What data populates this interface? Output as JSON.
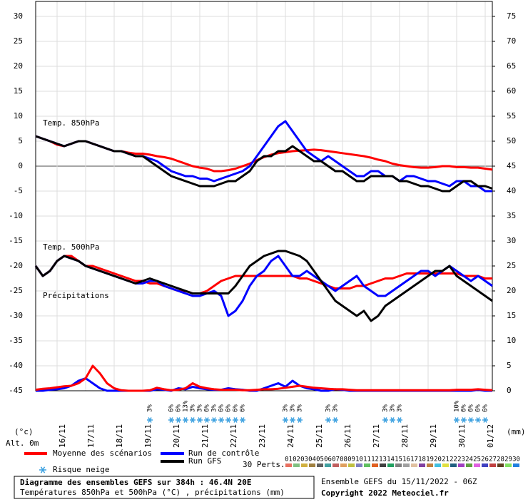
{
  "chart_data": {
    "type": "line",
    "panel_labels": [
      "Temp. 850hPa",
      "Temp. 500hPa",
      "Précipitations"
    ],
    "y_unit": "(°c)",
    "y2_unit": "(mm)",
    "altitude": "Alt. 0m",
    "categories": [
      null,
      null,
      null,
      "16/11",
      null,
      null,
      null,
      "17/11",
      null,
      null,
      null,
      "18/11",
      null,
      null,
      null,
      "19/11",
      null,
      null,
      null,
      "20/11",
      null,
      null,
      null,
      "21/11",
      null,
      null,
      null,
      "22/11",
      null,
      null,
      null,
      "23/11",
      null,
      null,
      null,
      "24/11",
      null,
      null,
      null,
      "25/11",
      null,
      null,
      null,
      "26/11",
      null,
      null,
      null,
      "27/11",
      null,
      null,
      null,
      "28/11",
      null,
      null,
      null,
      "29/11",
      null,
      null,
      null,
      "30/11",
      null,
      null,
      null,
      "01/12",
      null
    ],
    "ylim": [
      -45,
      33
    ],
    "yticks": [
      -45,
      -40,
      -35,
      -30,
      -25,
      -20,
      -15,
      -10,
      -5,
      0,
      5,
      10,
      15,
      20,
      25,
      30
    ],
    "y2lim": [
      0,
      78
    ],
    "y2ticks": [
      0,
      5,
      10,
      15,
      20,
      25,
      30,
      35,
      40,
      45,
      50,
      55,
      60,
      65,
      70,
      75
    ],
    "grid": true,
    "series": [
      {
        "name": "Moyenne des scénarios",
        "color": "#ff0000",
        "values": [
          6,
          5.5,
          5,
          4.3,
          4,
          4.5,
          5,
          5,
          4.5,
          4,
          3.5,
          3,
          3,
          2.7,
          2.5,
          2.5,
          2.3,
          2,
          1.8,
          1.5,
          1,
          0.5,
          0,
          -0.3,
          -0.5,
          -1,
          -1,
          -0.8,
          -0.5,
          0,
          0.5,
          1.2,
          1.8,
          2.3,
          2.6,
          2.8,
          3,
          3.1,
          3.2,
          3.3,
          3.2,
          3,
          2.8,
          2.6,
          2.4,
          2.2,
          2,
          1.7,
          1.3,
          1,
          0.5,
          0.2,
          0,
          -0.2,
          -0.3,
          -0.3,
          -0.2,
          0,
          0,
          -0.2,
          -0.2,
          -0.3,
          -0.3,
          -0.5,
          -0.7
        ]
      },
      {
        "name": "Run de contrôle",
        "color": "#0000ff",
        "values": [
          6,
          5.5,
          5,
          4.5,
          4,
          4.5,
          5,
          5,
          4.5,
          4,
          3.5,
          3,
          3,
          2.5,
          2,
          2,
          1.5,
          1,
          0,
          -1,
          -1.5,
          -2,
          -2,
          -2.5,
          -2.5,
          -3,
          -2.5,
          -2,
          -1.5,
          -1,
          0,
          2,
          4,
          6,
          8,
          9,
          7,
          5,
          3,
          2,
          1,
          2,
          1,
          0,
          -1,
          -2,
          -2,
          -1,
          -1,
          -2,
          -2,
          -3,
          -2,
          -2,
          -2.5,
          -3,
          -3,
          -3.5,
          -4,
          -3,
          -3,
          -4,
          -4,
          -5,
          -5
        ]
      },
      {
        "name": "Run GFS",
        "color": "#000000",
        "values": [
          6,
          5.5,
          5,
          4.5,
          4,
          4.5,
          5,
          5,
          4.5,
          4,
          3.5,
          3,
          3,
          2.5,
          2,
          2,
          1,
          0,
          -1,
          -2,
          -2.5,
          -3,
          -3.5,
          -4,
          -4,
          -4,
          -3.5,
          -3,
          -3,
          -2,
          -1,
          1,
          2,
          2,
          3,
          3,
          4,
          3,
          2,
          1,
          1,
          0,
          -1,
          -1,
          -2,
          -3,
          -3,
          -2,
          -2,
          -2,
          -2,
          -3,
          -3,
          -3.5,
          -4,
          -4,
          -4.5,
          -5,
          -5,
          -4,
          -3,
          -3,
          -4,
          -4,
          -4.5
        ]
      },
      {
        "color": "#ff0000",
        "values": [
          -20,
          -22,
          -21,
          -19,
          -18,
          -18,
          -19,
          -20,
          -20,
          -20.5,
          -21,
          -21.5,
          -22,
          -22.5,
          -23,
          -23,
          -23.5,
          -23.5,
          -24,
          -24.5,
          -25,
          -25,
          -25.5,
          -25.5,
          -25,
          -24,
          -23,
          -22.5,
          -22,
          -22,
          -22,
          -22,
          -22,
          -22,
          -22,
          -22,
          -22,
          -22.5,
          -22.5,
          -23,
          -23.5,
          -24,
          -24.5,
          -24.5,
          -24.5,
          -24,
          -24,
          -23.5,
          -23,
          -22.5,
          -22.5,
          -22,
          -21.5,
          -21.5,
          -21.5,
          -21.5,
          -21.5,
          -21.5,
          -21.5,
          -21.5,
          -22,
          -22,
          -22,
          -22.5,
          -22.5
        ]
      },
      {
        "color": "#0000ff",
        "values": [
          -20,
          -22,
          -21,
          -19,
          -18,
          -18.5,
          -19,
          -20,
          -20.5,
          -21,
          -21.5,
          -22,
          -22.5,
          -23,
          -23.5,
          -23.5,
          -23,
          -23,
          -24,
          -24.5,
          -25,
          -25.5,
          -26,
          -26,
          -25.5,
          -25,
          -26,
          -30,
          -29,
          -27,
          -24,
          -22,
          -21,
          -19,
          -18,
          -20,
          -22,
          -22,
          -21,
          -22,
          -23,
          -24,
          -25,
          -24,
          -23,
          -22,
          -24,
          -25,
          -26,
          -26,
          -25,
          -24,
          -23,
          -22,
          -21,
          -21,
          -22,
          -21,
          -20,
          -21,
          -22,
          -23,
          -22,
          -23,
          -24
        ]
      },
      {
        "color": "#000000",
        "values": [
          -20,
          -22,
          -21,
          -19,
          -18,
          -18.5,
          -19,
          -20,
          -20.5,
          -21,
          -21.5,
          -22,
          -22.5,
          -23,
          -23.5,
          -23,
          -22.5,
          -23,
          -23.5,
          -24,
          -24.5,
          -25,
          -25.5,
          -25.5,
          -25.5,
          -25.5,
          -25.5,
          -25.5,
          -24,
          -22,
          -20,
          -19,
          -18,
          -17.5,
          -17,
          -17,
          -17.5,
          -18,
          -19,
          -21,
          -23,
          -25,
          -27,
          -28,
          -29,
          -30,
          -29,
          -31,
          -30,
          -28,
          -27,
          -26,
          -25,
          -24,
          -23,
          -22,
          -21,
          -21,
          -20,
          -22,
          -23,
          -24,
          -25,
          -26,
          -27
        ]
      },
      {
        "color": "#0000ff",
        "axis": "y2",
        "values": [
          0,
          0,
          0.2,
          0.3,
          0.5,
          1,
          2,
          2.5,
          1.5,
          0.5,
          0,
          0,
          0,
          0,
          0,
          0,
          0,
          0.3,
          0.2,
          0,
          0.5,
          0.3,
          0.8,
          0.5,
          0.3,
          0.2,
          0.2,
          0.5,
          0.3,
          0.2,
          0,
          0,
          0.5,
          1,
          1.5,
          0.8,
          2,
          1,
          0.5,
          0.3,
          0,
          0,
          0.3,
          0.2,
          0,
          0,
          0,
          0,
          0,
          0,
          0,
          0,
          0,
          0,
          0,
          0,
          0,
          0,
          0,
          0,
          0,
          0,
          0.2,
          0,
          0
        ]
      },
      {
        "color": "#ff0000",
        "axis": "y2",
        "values": [
          0.2,
          0.4,
          0.5,
          0.7,
          0.9,
          1,
          1.5,
          2.5,
          5,
          3.5,
          1.5,
          0.5,
          0.1,
          0,
          0,
          0,
          0.1,
          0.6,
          0.3,
          0.1,
          0.2,
          0.5,
          1.5,
          0.8,
          0.5,
          0.3,
          0.2,
          0.2,
          0.2,
          0.1,
          0.1,
          0.2,
          0.3,
          0.3,
          0.4,
          0.6,
          0.8,
          1,
          0.8,
          0.6,
          0.5,
          0.4,
          0.3,
          0.3,
          0.2,
          0.1,
          0.1,
          0.1,
          0.1,
          0.1,
          0.1,
          0.1,
          0.1,
          0.1,
          0.1,
          0.1,
          0.1,
          0.1,
          0.1,
          0.2,
          0.2,
          0.2,
          0.3,
          0.2,
          0.1
        ]
      }
    ],
    "snow_risk": {
      "label": "Risque neige",
      "values": [
        null,
        null,
        null,
        null,
        null,
        null,
        null,
        null,
        null,
        null,
        null,
        null,
        null,
        null,
        null,
        null,
        3,
        null,
        null,
        6,
        6,
        13,
        3,
        3,
        6,
        3,
        6,
        6,
        6,
        6,
        null,
        null,
        null,
        null,
        null,
        3,
        3,
        3,
        null,
        null,
        null,
        3,
        3,
        null,
        null,
        null,
        null,
        null,
        null,
        3,
        3,
        3,
        null,
        null,
        null,
        null,
        null,
        null,
        null,
        10,
        6,
        6,
        6,
        6,
        null
      ],
      "value_labels": [
        null,
        null,
        null,
        null,
        null,
        null,
        null,
        null,
        null,
        null,
        null,
        null,
        null,
        null,
        null,
        null,
        "3%",
        null,
        null,
        "6%",
        "6%",
        "13%",
        "3%",
        "3%",
        "6%",
        "3%",
        "6%",
        "6%",
        "6%",
        "6%",
        null,
        null,
        null,
        null,
        null,
        "3%",
        "3%",
        "3%",
        null,
        null,
        null,
        "3%",
        "3%",
        null,
        null,
        null,
        null,
        null,
        null,
        "3%",
        "3%",
        "3%",
        null,
        null,
        null,
        null,
        null,
        null,
        null,
        "10%",
        "6%",
        "6%",
        "6%",
        "6%",
        null
      ]
    },
    "perturbations": {
      "label": "30 Perts.",
      "names": [
        "01",
        "02",
        "03",
        "04",
        "05",
        "06",
        "07",
        "08",
        "09",
        "10",
        "11",
        "12",
        "13",
        "14",
        "15",
        "16",
        "17",
        "18",
        "19",
        "20",
        "21",
        "22",
        "23",
        "24",
        "25",
        "26",
        "27",
        "28",
        "29",
        "30"
      ],
      "colors": [
        "#e87060",
        "#80c080",
        "#d0b040",
        "#a08040",
        "#606060",
        "#40a0a0",
        "#c06060",
        "#e0a060",
        "#c0c040",
        "#8080c0",
        "#60c060",
        "#e06020",
        "#404040",
        "#20a060",
        "#808080",
        "#a0a0a0",
        "#e0c0a0",
        "#8040a0",
        "#c08040",
        "#40c0e0",
        "#e0e040",
        "#206080",
        "#a040c0",
        "#60a040",
        "#e060e0",
        "#4040c0",
        "#c04040",
        "#604020",
        "#80e060",
        "#2080e0"
      ]
    },
    "footer": {
      "title": "Diagramme des ensembles GEFS sur 384h : 46.4N 20E",
      "subtitle": "Températures 850hPa et 500hPa (°C) , précipitations (mm)",
      "run": "Ensemble GEFS du 15/11/2022 - 06Z",
      "copyright": "Copyright 2022 Meteociel.fr"
    }
  }
}
